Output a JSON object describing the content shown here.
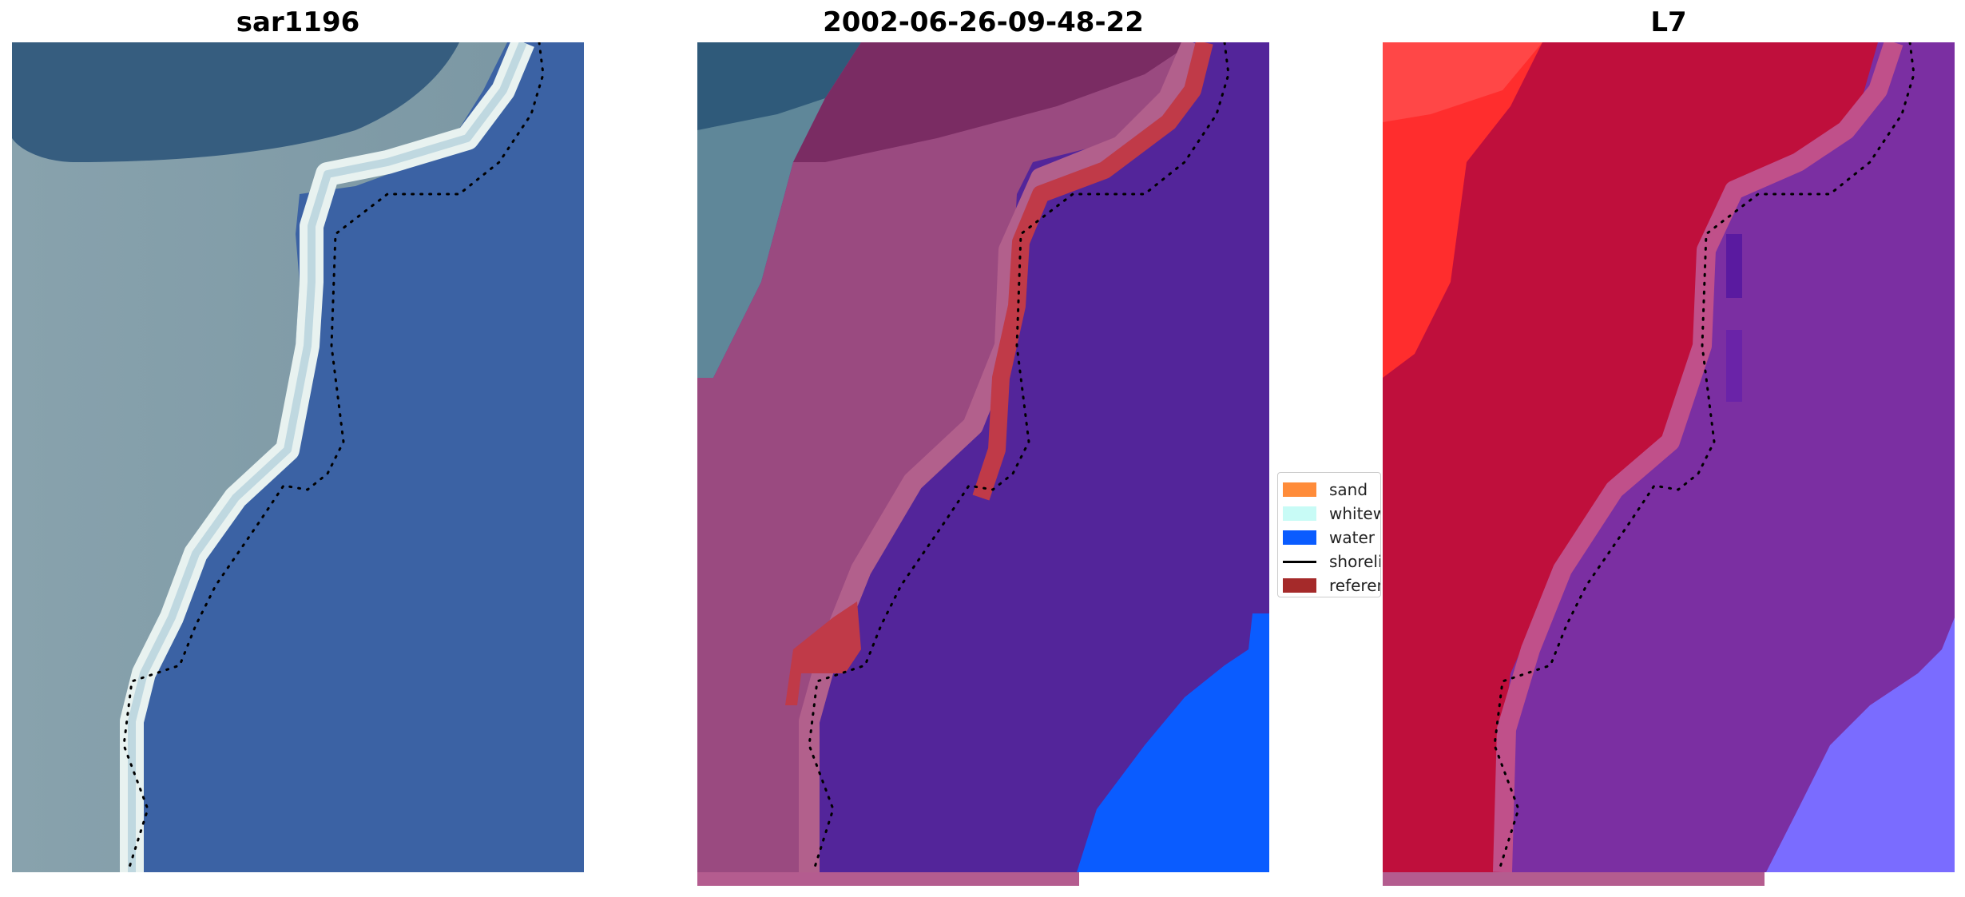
{
  "panels": [
    {
      "title": "sar1196"
    },
    {
      "title": "2002-06-26-09-48-22"
    },
    {
      "title": "L7"
    }
  ],
  "legend": {
    "items": [
      {
        "label": "sand",
        "kind": "patch",
        "color": "#ff8c3a"
      },
      {
        "label": "whitewater",
        "kind": "patch",
        "color": "#c8fbf6"
      },
      {
        "label": "water",
        "kind": "patch",
        "color": "#0a5cff"
      },
      {
        "label": "shoreline",
        "kind": "line",
        "color": "#000000"
      },
      {
        "label": "reference shoreline",
        "kind": "patch",
        "color": "#a52a2a"
      }
    ]
  }
}
